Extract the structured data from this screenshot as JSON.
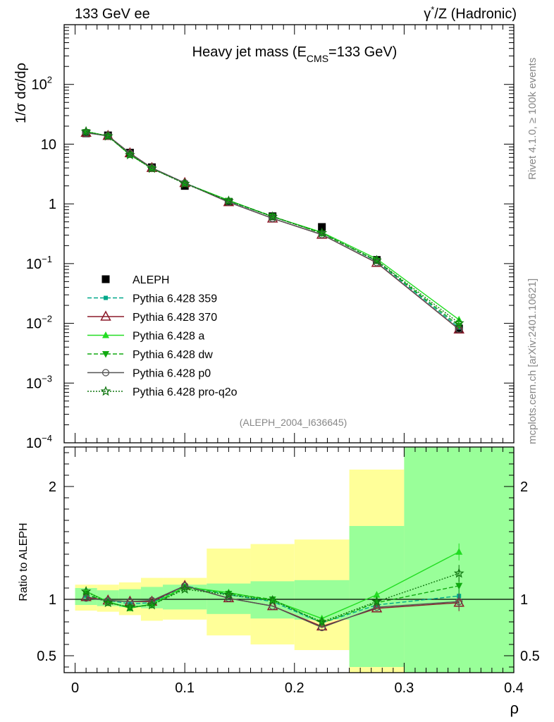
{
  "header": {
    "left": "133 GeV ee",
    "right_prefix": "γ",
    "right_sup": "*",
    "right_suffix": "/Z (Hadronic)"
  },
  "side": {
    "rivet": "Rivet 4.1.0, ≥ 100k events",
    "mcplots": "mcplots.cern.ch [arXiv:2401.10621]"
  },
  "colors": {
    "data": "#000000",
    "p359": "#00a88a",
    "p370": "#8b1a2a",
    "pa": "#22dd22",
    "pdw": "#11aa11",
    "pp0": "#555555",
    "pq2o": "#117711",
    "band_stat": "#99ff99",
    "band_tot": "#ffff99"
  },
  "chart_data": [
    {
      "type": "line",
      "title": "Heavy jet mass (E",
      "title_sub": "CMS",
      "title_tail": "=133 GeV)",
      "ylabel": "1/σ  dσ/dρ",
      "xlabel": "ρ",
      "yscale": "log",
      "ylim": [
        0.0001,
        1000
      ],
      "xlim": [
        -0.01,
        0.4
      ],
      "y_ticks": [
        {
          "v": 0.0001,
          "base": "10",
          "exp": "−4"
        },
        {
          "v": 0.001,
          "base": "10",
          "exp": "−3"
        },
        {
          "v": 0.01,
          "base": "10",
          "exp": "−2"
        },
        {
          "v": 0.1,
          "base": "10",
          "exp": "−1"
        },
        {
          "v": 1,
          "base": "1",
          "exp": ""
        },
        {
          "v": 10,
          "base": "10",
          "exp": ""
        },
        {
          "v": 100,
          "base": "10",
          "exp": "2"
        }
      ],
      "watermark": "(ALEPH_2004_I636645)",
      "x": [
        0.01,
        0.03,
        0.05,
        0.07,
        0.1,
        0.14,
        0.18,
        0.225,
        0.275,
        0.35
      ],
      "series": [
        {
          "name": "ALEPH",
          "key": "data",
          "values": [
            15.2,
            14.0,
            7.2,
            4.1,
            2.0,
            1.08,
            0.62,
            0.41,
            0.115,
            0.0082
          ]
        },
        {
          "name": "Pythia 6.428 359",
          "key": "p359",
          "values": [
            15.6,
            13.9,
            6.9,
            4.0,
            2.25,
            1.12,
            0.61,
            0.325,
            0.11,
            0.0085
          ]
        },
        {
          "name": "Pythia 6.428 370",
          "key": "p370",
          "values": [
            15.5,
            13.8,
            7.05,
            4.0,
            2.24,
            1.07,
            0.57,
            0.305,
            0.103,
            0.0079
          ]
        },
        {
          "name": "Pythia 6.428 a",
          "key": "pa",
          "values": [
            16.3,
            13.7,
            6.6,
            3.95,
            2.22,
            1.15,
            0.61,
            0.335,
            0.12,
            0.0115
          ]
        },
        {
          "name": "Pythia 6.428 dw",
          "key": "pdw",
          "values": [
            16.0,
            13.5,
            6.7,
            3.9,
            2.2,
            1.13,
            0.62,
            0.32,
            0.112,
            0.0091
          ]
        },
        {
          "name": "Pythia 6.428 p0",
          "key": "pp0",
          "values": [
            15.4,
            13.8,
            7.05,
            4.0,
            2.24,
            1.07,
            0.57,
            0.305,
            0.104,
            0.008
          ]
        },
        {
          "name": "Pythia 6.428 pro-q2o",
          "key": "pq2o",
          "values": [
            16.3,
            13.6,
            6.6,
            3.9,
            2.18,
            1.12,
            0.61,
            0.325,
            0.113,
            0.0101
          ]
        }
      ]
    },
    {
      "type": "line",
      "ylabel": "Ratio to ALEPH",
      "ylim": [
        0.35,
        2.35
      ],
      "y_ticks": [
        {
          "v": 0.5,
          "label": "0.5"
        },
        {
          "v": 1,
          "label": "1"
        },
        {
          "v": 2,
          "label": "2"
        }
      ],
      "x_ticks": [
        {
          "v": 0,
          "label": "0"
        },
        {
          "v": 0.1,
          "label": "0.1"
        },
        {
          "v": 0.2,
          "label": "0.2"
        },
        {
          "v": 0.3,
          "label": "0.3"
        },
        {
          "v": 0.4,
          "label": "0.4"
        }
      ],
      "bins": [
        {
          "lo": 0.0,
          "hi": 0.02,
          "stat": [
            0.95,
            1.1
          ],
          "tot": [
            0.9,
            1.13
          ]
        },
        {
          "lo": 0.02,
          "hi": 0.04,
          "stat": [
            0.94,
            1.08
          ],
          "tot": [
            0.89,
            1.13
          ]
        },
        {
          "lo": 0.04,
          "hi": 0.06,
          "stat": [
            0.93,
            1.09
          ],
          "tot": [
            0.86,
            1.15
          ]
        },
        {
          "lo": 0.06,
          "hi": 0.08,
          "stat": [
            0.92,
            1.11
          ],
          "tot": [
            0.81,
            1.19
          ]
        },
        {
          "lo": 0.08,
          "hi": 0.12,
          "stat": [
            0.91,
            1.13
          ],
          "tot": [
            0.82,
            1.19
          ]
        },
        {
          "lo": 0.12,
          "hi": 0.16,
          "stat": [
            0.87,
            1.14
          ],
          "tot": [
            0.68,
            1.45
          ]
        },
        {
          "lo": 0.16,
          "hi": 0.2,
          "stat": [
            0.83,
            1.16
          ],
          "tot": [
            0.6,
            1.49
          ]
        },
        {
          "lo": 0.2,
          "hi": 0.25,
          "stat": [
            0.82,
            1.17
          ],
          "tot": [
            0.55,
            1.53
          ]
        },
        {
          "lo": 0.25,
          "hi": 0.3,
          "stat": [
            0.4,
            1.65
          ],
          "tot": [
            0.35,
            2.15
          ]
        },
        {
          "lo": 0.3,
          "hi": 0.4,
          "stat": [
            0.35,
            2.35
          ],
          "tot": [
            0.35,
            2.35
          ]
        }
      ],
      "series": [
        {
          "name": "Pythia 6.428 359",
          "key": "p359",
          "values": [
            1.03,
            0.99,
            0.96,
            0.97,
            1.12,
            1.04,
            0.98,
            0.79,
            0.95,
            1.03
          ]
        },
        {
          "name": "Pythia 6.428 370",
          "key": "p370",
          "values": [
            1.02,
            0.99,
            0.98,
            0.98,
            1.12,
            1.01,
            0.94,
            0.76,
            0.92,
            0.97
          ]
        },
        {
          "name": "Pythia 6.428 a",
          "key": "pa",
          "values": [
            1.07,
            0.98,
            0.92,
            0.96,
            1.11,
            1.06,
            0.99,
            0.83,
            1.04,
            1.42
          ]
        },
        {
          "name": "Pythia 6.428 dw",
          "key": "pdw",
          "values": [
            1.05,
            0.97,
            0.93,
            0.95,
            1.1,
            1.05,
            1.0,
            0.79,
            0.97,
            1.12
          ]
        },
        {
          "name": "Pythia 6.428 p0",
          "key": "pp0",
          "values": [
            1.01,
            0.99,
            0.98,
            0.99,
            1.12,
            1.01,
            0.94,
            0.75,
            0.93,
            0.98
          ]
        },
        {
          "name": "Pythia 6.428 pro-q2o",
          "key": "pq2o",
          "values": [
            1.07,
            0.97,
            0.93,
            0.95,
            1.09,
            1.04,
            0.99,
            0.8,
            0.98,
            1.23
          ]
        }
      ]
    }
  ]
}
